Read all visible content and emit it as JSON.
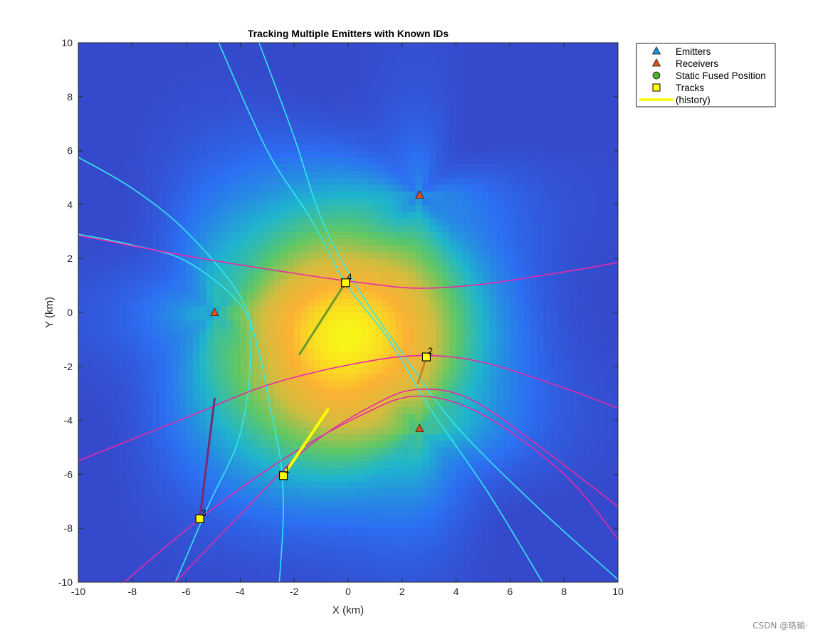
{
  "watermark": "CSDN @珞瑜·",
  "chart_data": {
    "type": "scatter",
    "title": "Tracking Multiple Emitters with Known IDs",
    "xlabel": "X (km)",
    "ylabel": "Y (km)",
    "xlim": [
      -10,
      10
    ],
    "ylim": [
      -10,
      10
    ],
    "xticks": [
      -10,
      -8,
      -6,
      -4,
      -2,
      0,
      2,
      4,
      6,
      8,
      10
    ],
    "yticks": [
      -10,
      -8,
      -6,
      -4,
      -2,
      0,
      2,
      4,
      6,
      8,
      10
    ],
    "grid": false,
    "legend_position": "outside-top-right",
    "legend": [
      {
        "label": "Emitters",
        "marker": "triangle",
        "color": "#1f8fd6"
      },
      {
        "label": "Receivers",
        "marker": "triangle",
        "color": "#d95319"
      },
      {
        "label": "Static Fused Position",
        "marker": "circle",
        "color": "#4dae2e"
      },
      {
        "label": "Tracks",
        "marker": "square",
        "color": "#ffff00"
      },
      {
        "label": "(history)",
        "marker": "line",
        "color": "#ffff00"
      }
    ],
    "background_heatmap": {
      "peak_x": -0.2,
      "peak_y": -1.0,
      "colormap": [
        "#3e26a8",
        "#2c6ff2",
        "#1fb5cd",
        "#5fc865",
        "#d3bc3e",
        "#fcb234",
        "#f9fb15"
      ]
    },
    "receivers": [
      {
        "x": -4.95,
        "y": 0.0
      },
      {
        "x": 2.65,
        "y": 4.35
      },
      {
        "x": 2.65,
        "y": -4.3
      }
    ],
    "tracks": [
      {
        "id": "1",
        "x": -2.4,
        "y": -6.05,
        "history": [
          [
            -0.75,
            -3.6
          ],
          [
            -2.4,
            -6.05
          ]
        ],
        "history_color": "#ffff00"
      },
      {
        "id": "2",
        "x": 2.9,
        "y": -1.65,
        "history": [
          [
            2.6,
            -2.6
          ],
          [
            2.9,
            -1.65
          ]
        ],
        "history_color": "#c08a2a"
      },
      {
        "id": "3",
        "x": -5.5,
        "y": -7.65,
        "history": [
          [
            -4.95,
            -3.2
          ],
          [
            -5.5,
            -7.65
          ]
        ],
        "history_color": "#7a2a6e"
      },
      {
        "id": "4",
        "x": -0.1,
        "y": 1.1,
        "history": [
          [
            -1.8,
            -1.55
          ],
          [
            -0.1,
            1.1
          ]
        ],
        "history_color": "#6a9a2a"
      }
    ],
    "hyperbolas_cyan": [
      {
        "name": "a",
        "points": [
          [
            -10,
            5.75
          ],
          [
            -8,
            4.6
          ],
          [
            -6,
            3.0
          ],
          [
            -4,
            0.6
          ],
          [
            -3.6,
            -1.2
          ],
          [
            -4.0,
            -4.5
          ],
          [
            -5.2,
            -7.2
          ],
          [
            -6.4,
            -10
          ]
        ]
      },
      {
        "name": "b",
        "points": [
          [
            -10,
            2.9
          ],
          [
            -8,
            2.5
          ],
          [
            -6,
            1.9
          ],
          [
            -4,
            0.3
          ],
          [
            -3.3,
            -1.5
          ],
          [
            -2.9,
            -3.5
          ],
          [
            -2.5,
            -5.5
          ],
          [
            -2.4,
            -7.5
          ],
          [
            -2.55,
            -10
          ]
        ]
      },
      {
        "name": "c",
        "points": [
          [
            -4.8,
            10
          ],
          [
            -3,
            6
          ],
          [
            -1.4,
            3.5
          ],
          [
            -0.1,
            1.1
          ],
          [
            1.5,
            -1.0
          ],
          [
            3.0,
            -3.5
          ],
          [
            5.2,
            -6.7
          ],
          [
            7.2,
            -10
          ]
        ]
      },
      {
        "name": "d",
        "points": [
          [
            -3.3,
            10
          ],
          [
            -2,
            6.5
          ],
          [
            -1.0,
            3.5
          ],
          [
            0.3,
            1.0
          ],
          [
            2.0,
            -1.5
          ],
          [
            4.0,
            -4.2
          ],
          [
            7.0,
            -7.2
          ],
          [
            10,
            -9.9
          ]
        ]
      }
    ],
    "hyperbolas_magenta": [
      {
        "name": "e",
        "points": [
          [
            -10,
            2.85
          ],
          [
            -6,
            2.1
          ],
          [
            -2,
            1.45
          ],
          [
            0.5,
            1.1
          ],
          [
            2.6,
            0.9
          ],
          [
            5,
            1.05
          ],
          [
            8,
            1.5
          ],
          [
            10,
            1.85
          ]
        ]
      },
      {
        "name": "f",
        "points": [
          [
            -10,
            -5.5
          ],
          [
            -6,
            -3.9
          ],
          [
            -3,
            -2.7
          ],
          [
            0,
            -1.95
          ],
          [
            2.6,
            -1.6
          ],
          [
            5,
            -1.85
          ],
          [
            8,
            -2.8
          ],
          [
            10,
            -3.55
          ]
        ]
      },
      {
        "name": "g",
        "points": [
          [
            -6.4,
            -10
          ],
          [
            -4,
            -7.5
          ],
          [
            -1.5,
            -5.0
          ],
          [
            1,
            -3.4
          ],
          [
            2.6,
            -2.85
          ],
          [
            4.5,
            -3.2
          ],
          [
            7,
            -4.9
          ],
          [
            10,
            -7.2
          ]
        ]
      },
      {
        "name": "h",
        "points": [
          [
            -8.3,
            -10
          ],
          [
            -5.5,
            -7.65
          ],
          [
            -2.5,
            -5.5
          ],
          [
            0.5,
            -3.8
          ],
          [
            2.6,
            -3.1
          ],
          [
            5,
            -3.8
          ],
          [
            8,
            -6.0
          ],
          [
            10,
            -8.4
          ]
        ]
      }
    ]
  }
}
